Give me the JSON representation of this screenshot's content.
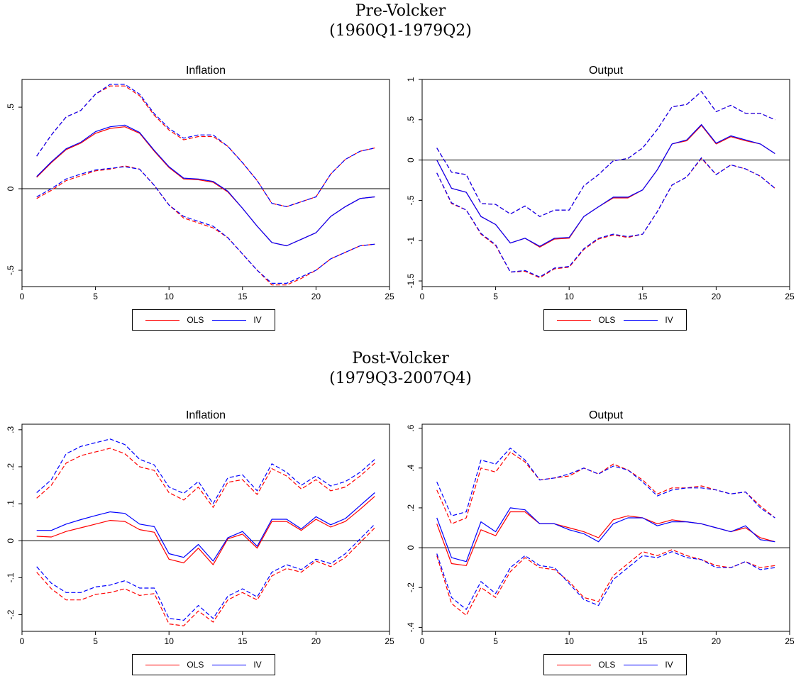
{
  "sections": [
    {
      "title_line1": "Pre-Volcker",
      "title_line2": "(1960Q1-1979Q2)"
    },
    {
      "title_line1": "Post-Volcker",
      "title_line2": "(1979Q3-2007Q4)"
    }
  ],
  "legend": {
    "ols": "OLS",
    "iv": "IV"
  },
  "colors": {
    "ols": "#ff0000",
    "iv": "#0000ff",
    "axis": "#000000"
  },
  "chart_data": [
    {
      "type": "line",
      "title": "Inflation",
      "x": [
        1,
        2,
        3,
        4,
        5,
        6,
        7,
        8,
        9,
        10,
        11,
        12,
        13,
        14,
        15,
        16,
        17,
        18,
        19,
        20,
        21,
        22,
        23,
        24
      ],
      "xlim": [
        0,
        25
      ],
      "ylim": [
        -0.6,
        0.67
      ],
      "xticks": [
        0,
        5,
        10,
        15,
        20,
        25
      ],
      "xtick_labels": [
        "0",
        "5",
        "10",
        "15",
        "20",
        "25"
      ],
      "yticks": [
        -0.5,
        0,
        0.5
      ],
      "ytick_labels": [
        "-.5",
        "0",
        ".5"
      ],
      "series": [
        {
          "name": "OLS",
          "color": "#ff0000",
          "style": "solid",
          "values": [
            0.07,
            0.16,
            0.24,
            0.28,
            0.34,
            0.37,
            0.38,
            0.34,
            0.23,
            0.13,
            0.06,
            0.055,
            0.04,
            -0.02,
            -0.12,
            -0.23,
            -0.33,
            -0.35,
            -0.31,
            -0.27,
            -0.17,
            -0.11,
            -0.06,
            -0.05
          ]
        },
        {
          "name": "IV",
          "color": "#0000ff",
          "style": "solid",
          "values": [
            0.075,
            0.165,
            0.245,
            0.285,
            0.35,
            0.38,
            0.39,
            0.345,
            0.235,
            0.135,
            0.065,
            0.06,
            0.045,
            -0.015,
            -0.12,
            -0.23,
            -0.33,
            -0.35,
            -0.31,
            -0.27,
            -0.17,
            -0.11,
            -0.06,
            -0.05
          ]
        },
        {
          "name": "OLS",
          "color": "#ff0000",
          "style": "dashed",
          "values": [
            0.2,
            0.33,
            0.44,
            0.48,
            0.58,
            0.63,
            0.63,
            0.57,
            0.45,
            0.36,
            0.3,
            0.32,
            0.32,
            0.26,
            0.16,
            0.05,
            -0.09,
            -0.11,
            -0.08,
            -0.05,
            0.09,
            0.18,
            0.23,
            0.25
          ]
        },
        {
          "name": "IV",
          "color": "#0000ff",
          "style": "dashed",
          "values": [
            0.2,
            0.33,
            0.44,
            0.48,
            0.58,
            0.64,
            0.64,
            0.58,
            0.46,
            0.37,
            0.31,
            0.33,
            0.33,
            0.26,
            0.16,
            0.05,
            -0.09,
            -0.11,
            -0.08,
            -0.05,
            0.09,
            0.18,
            0.23,
            0.25
          ]
        },
        {
          "name": "OLS",
          "color": "#ff0000",
          "style": "dashed",
          "values": [
            -0.06,
            -0.01,
            0.05,
            0.08,
            0.11,
            0.12,
            0.14,
            0.12,
            0.02,
            -0.1,
            -0.18,
            -0.21,
            -0.24,
            -0.3,
            -0.4,
            -0.5,
            -0.59,
            -0.59,
            -0.55,
            -0.5,
            -0.43,
            -0.39,
            -0.35,
            -0.34
          ]
        },
        {
          "name": "IV",
          "color": "#0000ff",
          "style": "dashed",
          "values": [
            -0.05,
            0.0,
            0.06,
            0.09,
            0.115,
            0.125,
            0.135,
            0.12,
            0.02,
            -0.1,
            -0.17,
            -0.2,
            -0.23,
            -0.3,
            -0.4,
            -0.5,
            -0.58,
            -0.58,
            -0.54,
            -0.5,
            -0.43,
            -0.39,
            -0.35,
            -0.34
          ]
        }
      ]
    },
    {
      "type": "line",
      "title": "Output",
      "x": [
        1,
        2,
        3,
        4,
        5,
        6,
        7,
        8,
        9,
        10,
        11,
        12,
        13,
        14,
        15,
        16,
        17,
        18,
        19,
        20,
        21,
        22,
        23,
        24
      ],
      "xlim": [
        0,
        25
      ],
      "ylim": [
        -1.57,
        1.0
      ],
      "xticks": [
        0,
        5,
        10,
        15,
        20,
        25
      ],
      "xtick_labels": [
        "0",
        "5",
        "10",
        "15",
        "20",
        "25"
      ],
      "yticks": [
        -1.5,
        -1,
        -0.5,
        0,
        0.5,
        1
      ],
      "ytick_labels": [
        "-1.5",
        "-1",
        "-.5",
        "0",
        ".5",
        "1"
      ],
      "series": [
        {
          "name": "OLS",
          "color": "#ff0000",
          "style": "solid",
          "values": [
            0.0,
            -0.35,
            -0.4,
            -0.7,
            -0.8,
            -1.03,
            -0.97,
            -1.08,
            -0.98,
            -0.97,
            -0.7,
            -0.58,
            -0.47,
            -0.47,
            -0.37,
            -0.12,
            0.2,
            0.24,
            0.43,
            0.2,
            0.29,
            0.24,
            0.2,
            0.08
          ]
        },
        {
          "name": "IV",
          "color": "#0000ff",
          "style": "solid",
          "values": [
            0.0,
            -0.35,
            -0.4,
            -0.7,
            -0.8,
            -1.03,
            -0.97,
            -1.07,
            -0.97,
            -0.96,
            -0.7,
            -0.58,
            -0.46,
            -0.46,
            -0.37,
            -0.12,
            0.2,
            0.25,
            0.44,
            0.21,
            0.3,
            0.25,
            0.2,
            0.08
          ]
        },
        {
          "name": "OLS",
          "color": "#ff0000",
          "style": "dashed",
          "values": [
            0.15,
            -0.15,
            -0.18,
            -0.54,
            -0.55,
            -0.67,
            -0.57,
            -0.7,
            -0.62,
            -0.62,
            -0.32,
            -0.18,
            -0.01,
            0.02,
            0.15,
            0.38,
            0.66,
            0.69,
            0.85,
            0.6,
            0.68,
            0.58,
            0.58,
            0.5
          ]
        },
        {
          "name": "IV",
          "color": "#0000ff",
          "style": "dashed",
          "values": [
            0.15,
            -0.15,
            -0.18,
            -0.54,
            -0.55,
            -0.67,
            -0.57,
            -0.7,
            -0.62,
            -0.62,
            -0.32,
            -0.18,
            -0.01,
            0.02,
            0.15,
            0.38,
            0.66,
            0.69,
            0.85,
            0.6,
            0.68,
            0.58,
            0.58,
            0.5
          ]
        },
        {
          "name": "OLS",
          "color": "#ff0000",
          "style": "dashed",
          "values": [
            -0.16,
            -0.54,
            -0.62,
            -0.92,
            -1.06,
            -1.39,
            -1.38,
            -1.46,
            -1.35,
            -1.33,
            -1.11,
            -0.98,
            -0.93,
            -0.96,
            -0.92,
            -0.64,
            -0.31,
            -0.21,
            0.02,
            -0.18,
            -0.06,
            -0.11,
            -0.2,
            -0.35
          ]
        },
        {
          "name": "IV",
          "color": "#0000ff",
          "style": "dashed",
          "values": [
            -0.16,
            -0.53,
            -0.62,
            -0.91,
            -1.05,
            -1.39,
            -1.37,
            -1.45,
            -1.34,
            -1.32,
            -1.1,
            -0.97,
            -0.92,
            -0.95,
            -0.92,
            -0.64,
            -0.31,
            -0.21,
            0.03,
            -0.18,
            -0.06,
            -0.11,
            -0.2,
            -0.35
          ]
        }
      ]
    },
    {
      "type": "line",
      "title": "Inflation",
      "x": [
        1,
        2,
        3,
        4,
        5,
        6,
        7,
        8,
        9,
        10,
        11,
        12,
        13,
        14,
        15,
        16,
        17,
        18,
        19,
        20,
        21,
        22,
        23,
        24
      ],
      "xlim": [
        0,
        25
      ],
      "ylim": [
        -0.245,
        0.315
      ],
      "xticks": [
        0,
        5,
        10,
        15,
        20,
        25
      ],
      "xtick_labels": [
        "0",
        "5",
        "10",
        "15",
        "20",
        "25"
      ],
      "yticks": [
        -0.2,
        -0.1,
        0,
        0.1,
        0.2,
        0.3
      ],
      "ytick_labels": [
        "-.2",
        "-.1",
        "0",
        ".1",
        ".2",
        ".3"
      ],
      "series": [
        {
          "name": "OLS",
          "color": "#ff0000",
          "style": "solid",
          "values": [
            0.012,
            0.01,
            0.025,
            0.035,
            0.045,
            0.055,
            0.052,
            0.03,
            0.023,
            -0.05,
            -0.06,
            -0.02,
            -0.065,
            0.005,
            0.018,
            -0.02,
            0.052,
            0.052,
            0.028,
            0.058,
            0.037,
            0.052,
            0.085,
            0.12
          ]
        },
        {
          "name": "IV",
          "color": "#0000ff",
          "style": "solid",
          "values": [
            0.028,
            0.028,
            0.045,
            0.057,
            0.068,
            0.078,
            0.074,
            0.045,
            0.038,
            -0.035,
            -0.045,
            -0.01,
            -0.055,
            0.008,
            0.025,
            -0.015,
            0.058,
            0.058,
            0.032,
            0.065,
            0.043,
            0.06,
            0.095,
            0.13
          ]
        },
        {
          "name": "OLS",
          "color": "#ff0000",
          "style": "dashed",
          "values": [
            0.115,
            0.15,
            0.21,
            0.23,
            0.24,
            0.25,
            0.235,
            0.2,
            0.19,
            0.13,
            0.11,
            0.145,
            0.09,
            0.158,
            0.165,
            0.125,
            0.195,
            0.175,
            0.14,
            0.165,
            0.135,
            0.145,
            0.175,
            0.21
          ]
        },
        {
          "name": "IV",
          "color": "#0000ff",
          "style": "dashed",
          "values": [
            0.13,
            0.165,
            0.235,
            0.255,
            0.265,
            0.275,
            0.26,
            0.22,
            0.205,
            0.145,
            0.128,
            0.16,
            0.1,
            0.17,
            0.178,
            0.135,
            0.208,
            0.185,
            0.15,
            0.175,
            0.148,
            0.16,
            0.185,
            0.22
          ]
        },
        {
          "name": "OLS",
          "color": "#ff0000",
          "style": "dashed",
          "values": [
            -0.085,
            -0.13,
            -0.16,
            -0.16,
            -0.145,
            -0.14,
            -0.13,
            -0.148,
            -0.143,
            -0.225,
            -0.23,
            -0.19,
            -0.22,
            -0.16,
            -0.14,
            -0.16,
            -0.095,
            -0.075,
            -0.085,
            -0.055,
            -0.07,
            -0.045,
            -0.005,
            0.035
          ]
        },
        {
          "name": "IV",
          "color": "#0000ff",
          "style": "dashed",
          "values": [
            -0.07,
            -0.115,
            -0.14,
            -0.14,
            -0.125,
            -0.12,
            -0.108,
            -0.128,
            -0.128,
            -0.21,
            -0.215,
            -0.175,
            -0.21,
            -0.15,
            -0.13,
            -0.152,
            -0.085,
            -0.065,
            -0.078,
            -0.05,
            -0.062,
            -0.035,
            0.005,
            0.045
          ]
        }
      ]
    },
    {
      "type": "line",
      "title": "Output",
      "x": [
        1,
        2,
        3,
        4,
        5,
        6,
        7,
        8,
        9,
        10,
        11,
        12,
        13,
        14,
        15,
        16,
        17,
        18,
        19,
        20,
        21,
        22,
        23,
        24
      ],
      "xlim": [
        0,
        25
      ],
      "ylim": [
        -0.42,
        0.62
      ],
      "xticks": [
        0,
        5,
        10,
        15,
        20,
        25
      ],
      "xtick_labels": [
        "0",
        "5",
        "10",
        "15",
        "20",
        "25"
      ],
      "yticks": [
        -0.4,
        -0.2,
        0,
        0.2,
        0.4,
        0.6
      ],
      "ytick_labels": [
        "-.4",
        "-.2",
        "0",
        ".2",
        ".4",
        ".6"
      ],
      "series": [
        {
          "name": "OLS",
          "color": "#ff0000",
          "style": "solid",
          "values": [
            0.12,
            -0.08,
            -0.09,
            0.09,
            0.06,
            0.18,
            0.18,
            0.12,
            0.12,
            0.1,
            0.08,
            0.05,
            0.14,
            0.16,
            0.15,
            0.12,
            0.14,
            0.13,
            0.12,
            0.1,
            0.08,
            0.1,
            0.05,
            0.03
          ]
        },
        {
          "name": "IV",
          "color": "#0000ff",
          "style": "solid",
          "values": [
            0.15,
            -0.05,
            -0.07,
            0.13,
            0.08,
            0.2,
            0.19,
            0.12,
            0.12,
            0.09,
            0.07,
            0.03,
            0.12,
            0.15,
            0.15,
            0.11,
            0.13,
            0.13,
            0.12,
            0.1,
            0.08,
            0.11,
            0.04,
            0.03
          ]
        },
        {
          "name": "OLS",
          "color": "#ff0000",
          "style": "dashed",
          "values": [
            0.29,
            0.12,
            0.15,
            0.4,
            0.38,
            0.48,
            0.43,
            0.34,
            0.35,
            0.36,
            0.4,
            0.37,
            0.42,
            0.39,
            0.34,
            0.27,
            0.3,
            0.3,
            0.31,
            0.29,
            0.27,
            0.28,
            0.21,
            0.15
          ]
        },
        {
          "name": "IV",
          "color": "#0000ff",
          "style": "dashed",
          "values": [
            0.33,
            0.16,
            0.18,
            0.44,
            0.42,
            0.5,
            0.44,
            0.34,
            0.35,
            0.37,
            0.4,
            0.37,
            0.41,
            0.39,
            0.33,
            0.26,
            0.29,
            0.3,
            0.3,
            0.29,
            0.27,
            0.28,
            0.2,
            0.15
          ]
        },
        {
          "name": "OLS",
          "color": "#ff0000",
          "style": "dashed",
          "values": [
            -0.04,
            -0.28,
            -0.34,
            -0.2,
            -0.25,
            -0.12,
            -0.05,
            -0.1,
            -0.11,
            -0.17,
            -0.25,
            -0.27,
            -0.14,
            -0.08,
            -0.02,
            -0.04,
            -0.01,
            -0.04,
            -0.06,
            -0.09,
            -0.1,
            -0.07,
            -0.1,
            -0.09
          ]
        },
        {
          "name": "IV",
          "color": "#0000ff",
          "style": "dashed",
          "values": [
            -0.03,
            -0.25,
            -0.31,
            -0.17,
            -0.23,
            -0.1,
            -0.04,
            -0.09,
            -0.1,
            -0.18,
            -0.26,
            -0.29,
            -0.16,
            -0.1,
            -0.04,
            -0.05,
            -0.02,
            -0.05,
            -0.06,
            -0.1,
            -0.1,
            -0.07,
            -0.11,
            -0.1
          ]
        }
      ]
    }
  ]
}
